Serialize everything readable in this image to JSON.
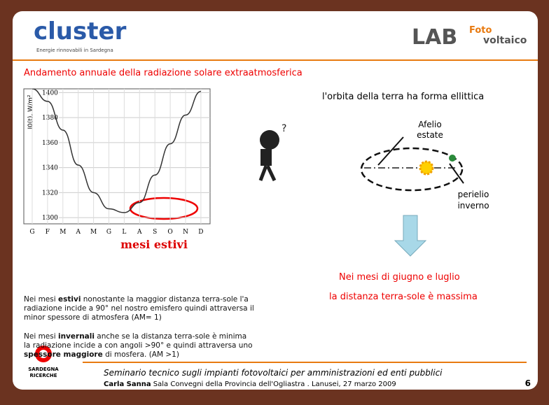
{
  "header": {
    "logo": "cluster",
    "logo_subtitle": "Energie rinnovabili in Sardegna",
    "lab": "LAB",
    "lab_top": "Foto",
    "lab_bottom": "voltaico"
  },
  "title": "Andamento annuale della radiazione solare extraatmosferica",
  "chart_data": {
    "type": "line",
    "y_label": "I0(t), W/m²",
    "categories": [
      "G",
      "F",
      "M",
      "A",
      "M",
      "G",
      "L",
      "A",
      "S",
      "O",
      "N",
      "D"
    ],
    "values": [
      1403,
      1393,
      1370,
      1342,
      1320,
      1307,
      1304,
      1312,
      1334,
      1359,
      1382,
      1401
    ],
    "color": "#333333",
    "ylim": [
      1295,
      1403
    ],
    "yticks": [
      1300,
      1320,
      1340,
      1360,
      1380,
      1400
    ],
    "grid": true,
    "caption": "mesi estivi"
  },
  "orbit": {
    "heading": "l'orbita della terra ha forma ellittica",
    "afelio": "Afelio",
    "estate": "estate",
    "perielio": "perielio",
    "inverno": "inverno"
  },
  "note": [
    "Nei mesi di giugno e luglio",
    "la distanza terra-sole è massima"
  ],
  "paragraphs": [
    [
      "Nei mesi ",
      "estivi",
      " nonostante la maggior distanza terra-sole l'a radiazione incide a 90° nel nostro emisfero quindi attraversa il minor spessore di atmosfera (AM= 1)"
    ],
    [
      "Nei mesi ",
      "invernali",
      " anche se la distanza terra-sole è minima la radiazione incide a con angoli >90° e quindi attraversa uno ",
      "spessore maggiore",
      " di mosfera. (AM >1)"
    ]
  ],
  "footer": {
    "brand": [
      "SARDEGNA",
      "RICERCHE"
    ],
    "line1": "Seminario tecnico sugli impianti fotovoltaici per amministrazioni ed enti pubblici",
    "author": "Carla Sanna",
    "line2": " Sala Convegni della Provincia dell'Ogliastra . Lanusei, 27 marzo 2009",
    "page": "6"
  }
}
